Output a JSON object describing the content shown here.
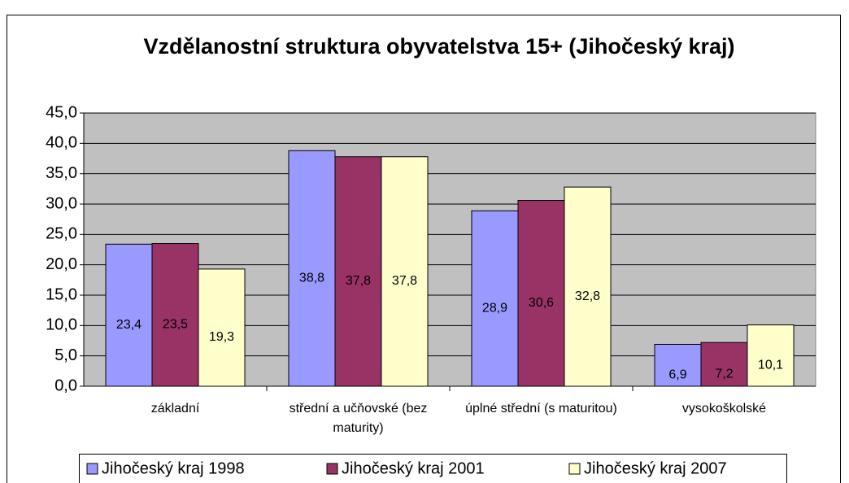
{
  "chart_data": {
    "type": "bar",
    "title": "Vzdělanostní struktura obyvatelstva 15+ (Jihočeský kraj)",
    "categories": [
      "základní",
      "střední a učňovské (bez maturity)",
      "úplné střední (s maturitou)",
      "vysokoškolské"
    ],
    "series": [
      {
        "name": "Jihočeský kraj 1998",
        "color": "#9999ff",
        "values": [
          23.4,
          38.8,
          28.9,
          6.9
        ],
        "value_labels": [
          "23,4",
          "38,8",
          "28,9",
          "6,9"
        ]
      },
      {
        "name": "Jihočeský kraj 2001",
        "color": "#993366",
        "values": [
          23.5,
          37.8,
          30.6,
          7.2
        ],
        "value_labels": [
          "23,5",
          "37,8",
          "30,6",
          "7,2"
        ]
      },
      {
        "name": "Jihočeský kraj 2007",
        "color": "#ffffcc",
        "values": [
          19.3,
          37.8,
          32.8,
          10.1
        ],
        "value_labels": [
          "19,3",
          "37,8",
          "32,8",
          "10,1"
        ]
      }
    ],
    "ylim": [
      0,
      45
    ],
    "yticks": [
      {
        "value": 0,
        "label": "0,0"
      },
      {
        "value": 5,
        "label": "5,0"
      },
      {
        "value": 10,
        "label": "10,0"
      },
      {
        "value": 15,
        "label": "15,0"
      },
      {
        "value": 20,
        "label": "20,0"
      },
      {
        "value": 25,
        "label": "25,0"
      },
      {
        "value": 30,
        "label": "30,0"
      },
      {
        "value": 35,
        "label": "35,0"
      },
      {
        "value": 40,
        "label": "40,0"
      },
      {
        "value": 45,
        "label": "45,0"
      }
    ],
    "grid": true,
    "legend": "bottom"
  }
}
